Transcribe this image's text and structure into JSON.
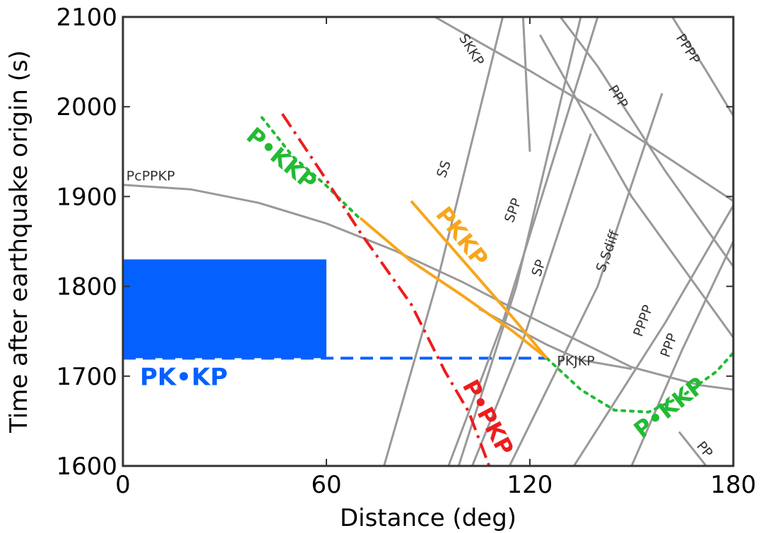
{
  "chart_data": {
    "type": "line",
    "xlabel": "Distance (deg)",
    "ylabel": "Time after earthquake origin (s)",
    "xlim": [
      0,
      180
    ],
    "ylim": [
      1600,
      2100
    ],
    "xticks": [
      0,
      60,
      120,
      180
    ],
    "yticks": [
      1600,
      1700,
      1800,
      1900,
      2000,
      2100
    ],
    "grid": false,
    "colors": {
      "grey": "#999999",
      "green": "#22bb33",
      "red": "#ee1c1c",
      "orange": "#f7a61b",
      "blue": "#0461ff"
    },
    "highlight_region": {
      "label": "PK•KP",
      "x": [
        0,
        60
      ],
      "y": [
        1720,
        1830
      ]
    },
    "reference_line": {
      "label": "PK•KP",
      "y": 1720,
      "x": [
        60,
        125
      ]
    },
    "series": [
      {
        "name": "PcPPKP",
        "kind": "grey",
        "label": "PcPPKP",
        "points": [
          [
            0,
            1913
          ],
          [
            20,
            1908
          ],
          [
            40,
            1893
          ],
          [
            60,
            1870
          ],
          [
            80,
            1840
          ],
          [
            100,
            1805
          ],
          [
            120,
            1766
          ],
          [
            135,
            1738
          ],
          [
            150,
            1710
          ],
          [
            170,
            1690
          ],
          [
            180,
            1685
          ]
        ]
      },
      {
        "name": "SKKP",
        "kind": "grey",
        "label": "SKKP",
        "points": [
          [
            92,
            2100
          ],
          [
            105,
            2072
          ],
          [
            120,
            2040
          ],
          [
            140,
            1995
          ],
          [
            160,
            1945
          ],
          [
            180,
            1895
          ]
        ]
      },
      {
        "name": "PPPP",
        "kind": "grey",
        "label": "PPPP",
        "points": [
          [
            162,
            2100
          ],
          [
            172,
            2040
          ],
          [
            180,
            1990
          ]
        ]
      },
      {
        "name": "PPP",
        "kind": "grey",
        "label": "PPP",
        "points": [
          [
            129,
            2100
          ],
          [
            140,
            2045
          ],
          [
            160,
            1928
          ],
          [
            180,
            1822
          ]
        ]
      },
      {
        "name": "PPP (lower)",
        "kind": "grey",
        "label": "",
        "points": [
          [
            123,
            2080
          ],
          [
            150,
            1900
          ],
          [
            180,
            1743
          ]
        ]
      },
      {
        "name": "SS",
        "kind": "grey",
        "label": "SS",
        "points": [
          [
            77,
            1600
          ],
          [
            93,
            1810
          ],
          [
            112,
            2100
          ]
        ]
      },
      {
        "name": "SPP",
        "kind": "grey",
        "label": "SPP",
        "points": [
          [
            96,
            1600
          ],
          [
            112,
            1760
          ],
          [
            140,
            2100
          ]
        ]
      },
      {
        "name": "SP",
        "kind": "grey",
        "label": "SP",
        "points": [
          [
            99,
            1600
          ],
          [
            116,
            1800
          ],
          [
            135,
            2100
          ]
        ]
      },
      {
        "name": "S,Sdiff",
        "kind": "grey",
        "label": "S,Sdiff",
        "points": [
          [
            103,
            1600
          ],
          [
            118,
            1740
          ],
          [
            138,
            1970
          ]
        ]
      },
      {
        "name": "PPPP (lower)",
        "kind": "grey",
        "label": "PPPP",
        "points": [
          [
            114,
            1600
          ],
          [
            140,
            1800
          ],
          [
            159,
            2015
          ]
        ]
      },
      {
        "name": "PPP (right)",
        "kind": "grey",
        "label": "PPP",
        "points": [
          [
            133,
            1600
          ],
          [
            160,
            1760
          ],
          [
            180,
            1890
          ]
        ]
      },
      {
        "name": "PPP (right2)",
        "kind": "grey",
        "label": "",
        "points": [
          [
            150,
            1600
          ],
          [
            165,
            1730
          ],
          [
            180,
            1850
          ]
        ]
      },
      {
        "name": "PKJKP",
        "kind": "grey",
        "label": "PKJKP",
        "points": [
          [
            105,
            1775
          ],
          [
            115,
            1755
          ],
          [
            125,
            1735
          ],
          [
            135,
            1718
          ],
          [
            150,
            1708
          ]
        ]
      },
      {
        "name": "PP",
        "kind": "grey",
        "label": "PP",
        "points": [
          [
            164,
            1638
          ],
          [
            172,
            1600
          ]
        ]
      },
      {
        "name": "PcPPKP short",
        "kind": "grey",
        "label": "",
        "points": [
          [
            118,
            2100
          ],
          [
            120,
            1950
          ]
        ]
      },
      {
        "name": "P•KKP",
        "kind": "green",
        "label": "P•KKP",
        "style": "dotted",
        "points": [
          [
            41,
            1988
          ],
          [
            50,
            1945
          ],
          [
            60,
            1912
          ],
          [
            70,
            1875
          ]
        ]
      },
      {
        "name": "P•KKP (right)",
        "kind": "green",
        "label": "P•KKP",
        "style": "dotted",
        "points": [
          [
            125,
            1720
          ],
          [
            135,
            1685
          ],
          [
            145,
            1662
          ],
          [
            155,
            1660
          ],
          [
            165,
            1678
          ],
          [
            175,
            1705
          ],
          [
            180,
            1726
          ]
        ]
      },
      {
        "name": "P•PKP",
        "kind": "red",
        "label": "P•PKP",
        "style": "dashdot",
        "points": [
          [
            47,
            1992
          ],
          [
            58,
            1930
          ],
          [
            70,
            1860
          ],
          [
            85,
            1780
          ],
          [
            95,
            1705
          ],
          [
            102,
            1660
          ],
          [
            108,
            1600
          ]
        ]
      },
      {
        "name": "PKKP",
        "kind": "orange",
        "label": "PKKP",
        "style": "solid",
        "points": [
          [
            70,
            1876
          ],
          [
            85,
            1828
          ],
          [
            100,
            1790
          ],
          [
            115,
            1750
          ],
          [
            125,
            1720
          ]
        ]
      },
      {
        "name": "PKKP (upper)",
        "kind": "orange",
        "label": "",
        "style": "solid",
        "points": [
          [
            85,
            1895
          ],
          [
            100,
            1830
          ],
          [
            115,
            1765
          ],
          [
            125,
            1720
          ]
        ]
      }
    ],
    "labels": {
      "PcPPKP": "PcPPKP",
      "SKKP": "SKKP",
      "PPPP_top": "PPPP",
      "PPP_top": "PPP",
      "SS": "SS",
      "SPP": "SPP",
      "SP": "SP",
      "SSdiff": "S,Sdiff",
      "PPPP_low": "PPPP",
      "PPP_low": "PPP",
      "PKJKP": "PKJKP",
      "PP": "PP",
      "PKKP": "PKKP",
      "PdKKP_left": "P•KKP",
      "PdKKP_right": "P•KKP",
      "PdPKP": "P•PKP",
      "PKdKP": "PK•KP"
    }
  }
}
